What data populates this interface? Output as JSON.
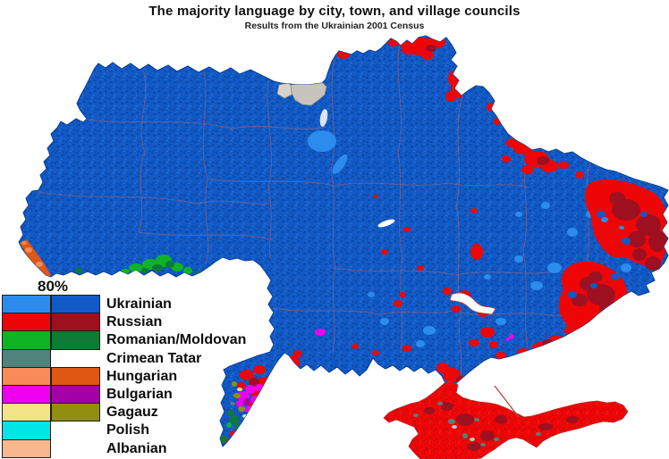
{
  "title": "The majority language by city, town, and village councils",
  "subtitle": "Results from the Ukrainian 2001 Census",
  "legend": {
    "threshold_label": "80%",
    "entries": [
      {
        "label": "Ukrainian",
        "light": "#2B8CEE",
        "dark": "#1159C6",
        "has_dark": true
      },
      {
        "label": "Russian",
        "light": "#EE0606",
        "dark": "#9E1020",
        "has_dark": true
      },
      {
        "label": "Romanian/Moldovan",
        "light": "#0FB325",
        "dark": "#0E7A33",
        "has_dark": true
      },
      {
        "label": "Crimean Tatar",
        "light": "#4F837C",
        "dark": null,
        "has_dark": false
      },
      {
        "label": "Hungarian",
        "light": "#F68B57",
        "dark": "#DE5713",
        "has_dark": true
      },
      {
        "label": "Bulgarian",
        "light": "#EE00EE",
        "dark": "#A300A8",
        "has_dark": true
      },
      {
        "label": "Gagauz",
        "light": "#F2E388",
        "dark": "#8F9010",
        "has_dark": true
      },
      {
        "label": "Polish",
        "light": "#00E6E6",
        "dark": null,
        "has_dark": false
      },
      {
        "label": "Albanian",
        "light": "#F8B78C",
        "dark": null,
        "has_dark": false
      }
    ]
  },
  "map": {
    "colors": {
      "ukrainian_light": "#2B8CEE",
      "ukrainian_dark": "#1159C6",
      "russian_light": "#EE0606",
      "russian_dark": "#9E1020",
      "romanian_light": "#0FB325",
      "romanian_dark": "#0E7A33",
      "crimean_tatar": "#4F837C",
      "hungarian_light": "#F68B57",
      "hungarian_dark": "#DE5713",
      "bulgarian_light": "#EE00EE",
      "bulgarian_dark": "#A300A8",
      "gagauz_light": "#F2E388",
      "gagauz_dark": "#8F9010",
      "polish": "#00E6E6",
      "albanian": "#F8B78C",
      "uninhabited": "#C8C4BD",
      "uninhabited_light": "#D8D4CD",
      "sea": "#FFFFFF",
      "oblast_line": "#C06868",
      "coast_line": "#0B3F93"
    }
  }
}
